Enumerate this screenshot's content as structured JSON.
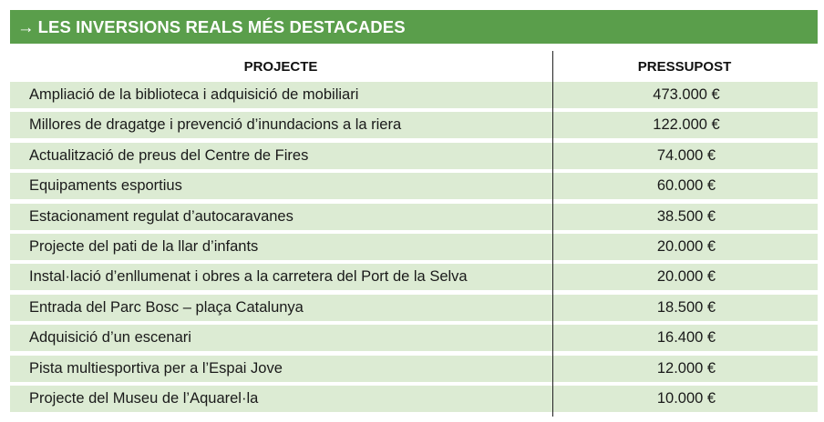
{
  "banner": {
    "arrow": "→",
    "title": "LES INVERSIONS REALS MÉS DESTACADES"
  },
  "table": {
    "headers": {
      "project": "PROJECTE",
      "budget": "PRESSUPOST"
    },
    "rows": [
      {
        "project": "Ampliació de la biblioteca i adquisició de mobiliari",
        "budget": "473.000 €"
      },
      {
        "project": "Millores de dragatge i prevenció d’inundacions a la riera",
        "budget": "122.000 €"
      },
      {
        "project": "Actualització de preus del Centre de Fires",
        "budget": "74.000 €"
      },
      {
        "project": "Equipaments esportius",
        "budget": "60.000 €"
      },
      {
        "project": "Estacionament regulat d’autocaravanes",
        "budget": "38.500 €"
      },
      {
        "project": "Projecte del pati de la llar d’infants",
        "budget": "20.000 €"
      },
      {
        "project": "Instal·lació d’enllumenat i obres a la carretera del Port de la Selva",
        "budget": "20.000 €"
      },
      {
        "project": "Entrada del Parc Bosc – plaça Catalunya",
        "budget": "18.500 €"
      },
      {
        "project": "Adquisició d’un escenari",
        "budget": "16.400 €"
      },
      {
        "project": "Pista multiesportiva per a l’Espai Jove",
        "budget": "12.000 €"
      },
      {
        "project": "Projecte del Museu de l’Aquarel·la",
        "budget": "10.000 €"
      }
    ]
  },
  "colors": {
    "banner": "#5a9e4b",
    "row_fill": "#dcebd3",
    "divider": "#222222"
  }
}
